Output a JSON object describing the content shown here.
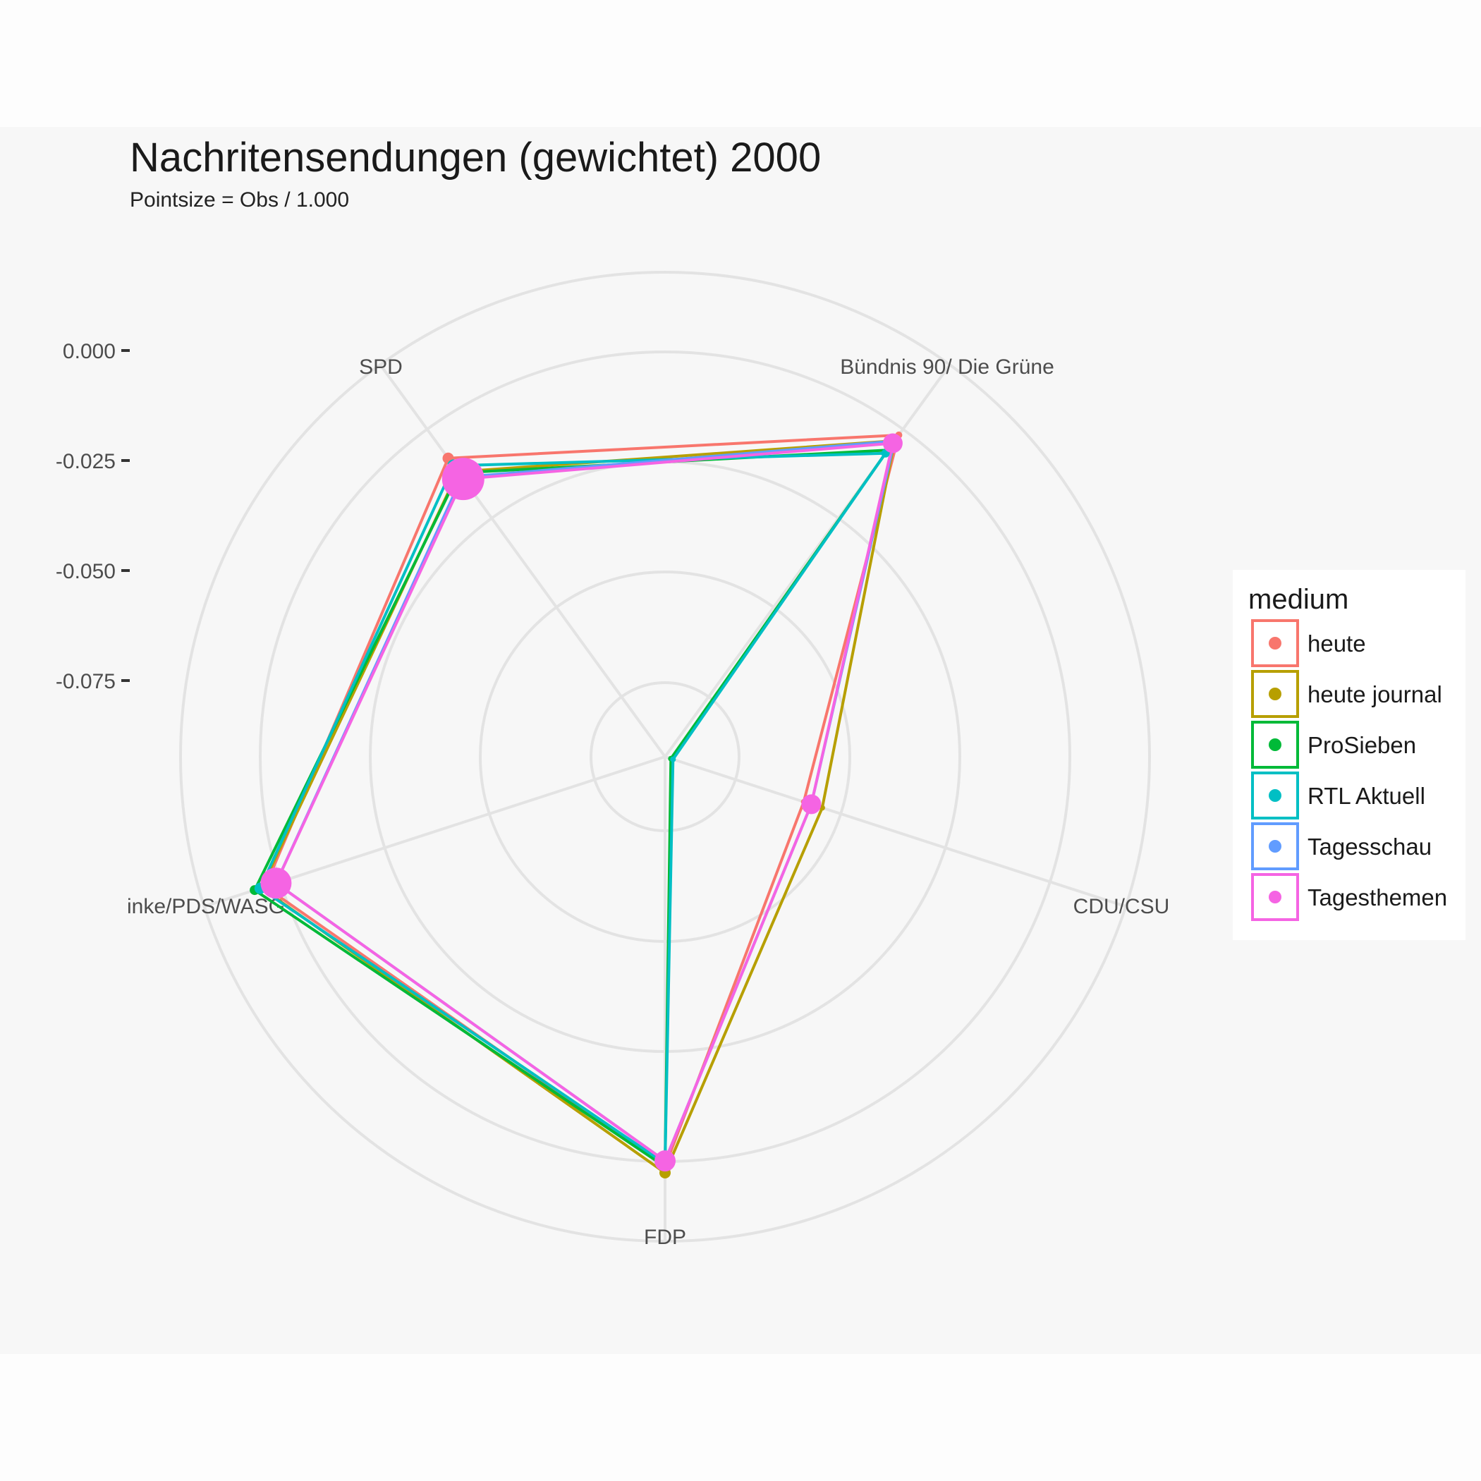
{
  "chart_data": {
    "type": "radar",
    "title": "Nachritensendungen (gewichtet) 2000",
    "subtitle": "Pointsize = Obs / 1.000",
    "axes": [
      "SPD",
      "Bündnis 90/ Die Grüne",
      "CDU/CSU",
      "FDP",
      "inke/PDS/WASG"
    ],
    "radial_ticks": [
      "0.000",
      "-0.025",
      "-0.050",
      "-0.075"
    ],
    "radial_tick_values": [
      0.0,
      -0.025,
      -0.05,
      -0.075
    ],
    "radial_range": [
      -0.1,
      0.02
    ],
    "grid": true,
    "legend": {
      "title": "medium",
      "position": "right"
    },
    "series": [
      {
        "name": "heute",
        "color": "#F8766D",
        "values": [
          -0.0163,
          -0.0098,
          -0.0669,
          -0.007,
          -0.0046
        ],
        "sizes": [
          12,
          6,
          4,
          14,
          12
        ]
      },
      {
        "name": "heute journal",
        "color": "#B79F00",
        "values": [
          -0.0201,
          -0.0114,
          -0.0625,
          -0.0056,
          -0.0037
        ],
        "sizes": [
          10,
          6,
          4,
          12,
          10
        ]
      },
      {
        "name": "ProSieben",
        "color": "#00BA38",
        "values": [
          -0.0204,
          -0.014,
          -0.0986,
          -0.007,
          -0.0021
        ],
        "sizes": [
          10,
          6,
          4,
          6,
          10
        ]
      },
      {
        "name": "RTL Aktuell",
        "color": "#00BFC4",
        "values": [
          -0.0184,
          -0.0149,
          -0.0981,
          -0.0077,
          -0.0034
        ],
        "sizes": [
          14,
          8,
          4,
          10,
          12
        ]
      },
      {
        "name": "Tagesschau",
        "color": "#619CFF",
        "values": [
          -0.0216,
          -0.0115,
          -0.0651,
          -0.0083,
          -0.0072
        ],
        "sizes": [
          16,
          10,
          6,
          14,
          16
        ]
      },
      {
        "name": "Tagesthemen",
        "color": "#F564E3",
        "values": [
          -0.0221,
          -0.0121,
          -0.0651,
          -0.0083,
          -0.0072
        ],
        "sizes": [
          56,
          24,
          24,
          26,
          40
        ]
      }
    ]
  }
}
